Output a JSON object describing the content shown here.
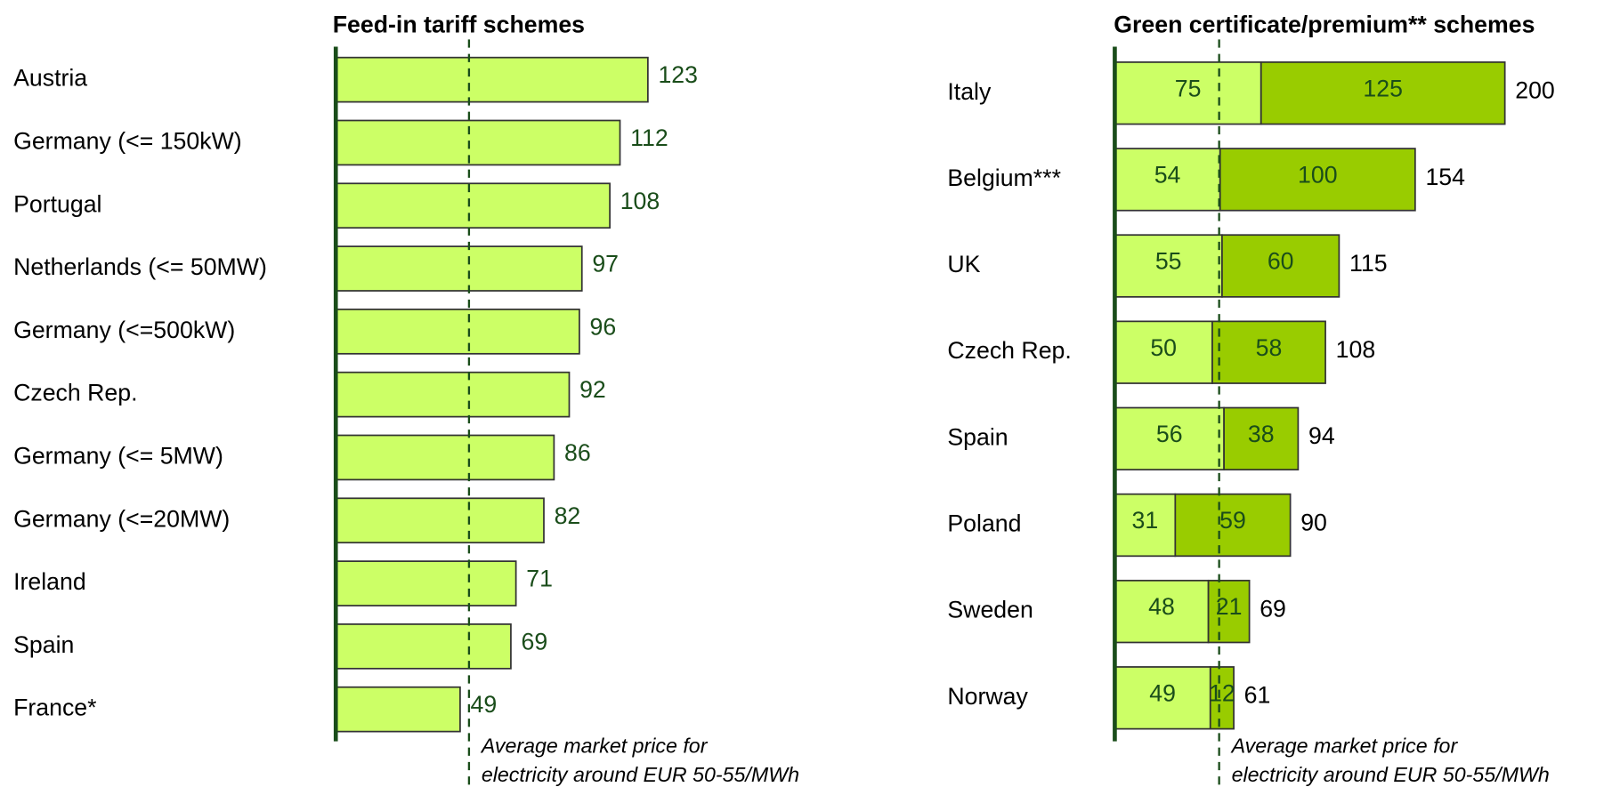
{
  "chart_data": [
    {
      "type": "bar",
      "title": "Feed-in tariff schemes",
      "categories": [
        "Austria",
        "Germany (<= 150kW)",
        "Portugal",
        "Netherlands (<= 50MW)",
        "Germany (<=500kW)",
        "Czech Rep.",
        "Germany (<= 5MW)",
        "Germany (<=20MW)",
        "Ireland",
        "Spain",
        "France*"
      ],
      "values": [
        123,
        112,
        108,
        97,
        96,
        92,
        86,
        82,
        71,
        69,
        49
      ],
      "color": "#ccff66",
      "xlim": [
        0,
        125
      ],
      "market_price": 52.5,
      "annotation": [
        "Average market price for",
        "electricity around EUR 50-55/MWh"
      ]
    },
    {
      "type": "stacked_bar",
      "title": "Green certificate/premium** schemes",
      "categories": [
        "Italy",
        "Belgium***",
        "UK",
        "Czech Rep.",
        "Spain",
        "Poland",
        "Sweden",
        "Norway"
      ],
      "series": [
        {
          "color": "#ccff66",
          "values": [
            75,
            54,
            55,
            50,
            56,
            31,
            48,
            49
          ]
        },
        {
          "color": "#99cc00",
          "values": [
            125,
            100,
            60,
            58,
            38,
            59,
            21,
            12
          ]
        }
      ],
      "totals": [
        200,
        154,
        115,
        108,
        94,
        90,
        69,
        61
      ],
      "xlim": [
        0,
        205
      ],
      "market_price": 53.5,
      "annotation": [
        "Average market price for",
        "electricity around EUR 50-55/MWh"
      ]
    }
  ]
}
